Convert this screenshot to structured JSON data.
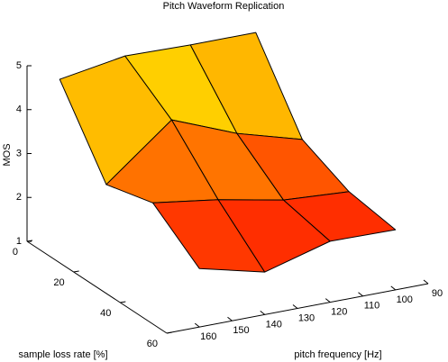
{
  "chart_data": {
    "type": "surface",
    "title": "Pitch Waveform Replication",
    "xlabel": "pitch frequency [Hz]",
    "ylabel": "sample loss rate [%]",
    "zlabel": "MOS",
    "x": [
      160,
      140,
      120,
      100
    ],
    "y": [
      0,
      20,
      40,
      60
    ],
    "z": [
      [
        4.55,
        4.8,
        4.77,
        4.77
      ],
      [
        2.85,
        4.04,
        3.45,
        3.03
      ],
      [
        3.13,
        2.92,
        2.63,
        2.54
      ],
      [
        2.33,
        1.97,
        2.39,
        2.37
      ]
    ],
    "xlim": [
      90,
      170
    ],
    "ylim": [
      0,
      60
    ],
    "zlim": [
      1,
      5
    ],
    "xticks": [
      90,
      100,
      110,
      120,
      130,
      140,
      150,
      160
    ],
    "yticks": [
      0,
      20,
      40,
      60
    ],
    "zticks": [
      1,
      2,
      3,
      4,
      5
    ],
    "colormap": "autumn",
    "edge_color": "#000000"
  }
}
